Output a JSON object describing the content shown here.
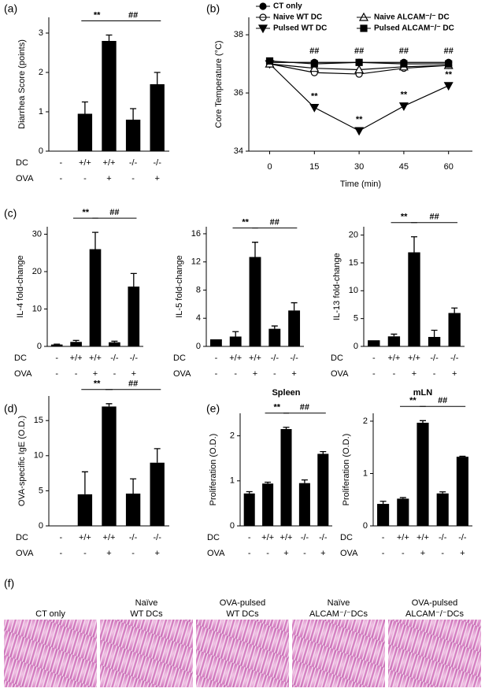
{
  "chart_data": [
    {
      "type": "bar",
      "panel": "(a)",
      "ylabel": "Diarrhea Score (points)",
      "color": "#000000",
      "values": [
        null,
        0.95,
        2.8,
        0.8,
        1.7
      ],
      "errors": [
        null,
        0.3,
        0.15,
        0.28,
        0.3
      ],
      "ylim": [
        0,
        3.4
      ],
      "yticks": [
        0,
        1,
        2,
        3
      ],
      "rows": [
        {
          "label": "DC",
          "values": [
            "-",
            "+/+",
            "+/+",
            "-/-",
            "-/-"
          ]
        },
        {
          "label": "OVA",
          "values": [
            "-",
            "-",
            "+",
            "-",
            "+"
          ]
        }
      ],
      "annotations": [
        "**",
        "##"
      ]
    },
    {
      "type": "line",
      "panel": "(b)",
      "ylabel": "Core Temperature (°C)",
      "xlabel": "Time (min)",
      "legend": "top",
      "x": [
        0,
        15,
        30,
        45,
        60
      ],
      "xlim": [
        -7,
        68
      ],
      "xticks": [
        0,
        15,
        30,
        45,
        60
      ],
      "ylim": [
        34,
        38.6
      ],
      "yticks": [
        34,
        36,
        38
      ],
      "series": [
        {
          "name": "CT only",
          "color": "#000000",
          "marker": "circle",
          "filled": true,
          "values": [
            37.05,
            37.05,
            37.05,
            37.05,
            37.05
          ]
        },
        {
          "name": "Naive WT DC",
          "color": "#000000",
          "marker": "circle",
          "filled": false,
          "values": [
            37.0,
            36.7,
            36.65,
            36.85,
            36.95
          ]
        },
        {
          "name": "Pulsed WT DC",
          "color": "#000000",
          "marker": "triangle-down",
          "filled": true,
          "values": [
            37.0,
            35.5,
            34.7,
            35.55,
            36.25
          ]
        },
        {
          "name": "Naive ALCAM⁻/⁻ DC",
          "color": "#000000",
          "marker": "triangle-up",
          "filled": false,
          "values": [
            37.0,
            36.85,
            36.8,
            36.9,
            36.95
          ]
        },
        {
          "name": "Pulsed ALCAM⁻/⁻ DC",
          "color": "#000000",
          "marker": "square",
          "filled": true,
          "values": [
            37.1,
            37.0,
            37.05,
            37.0,
            37.0
          ]
        }
      ],
      "annotations": [
        {
          "text": "##",
          "x": [
            15,
            30,
            45,
            60
          ]
        },
        {
          "text": "**",
          "x": [
            15,
            30,
            45,
            60
          ]
        }
      ]
    },
    {
      "type": "bar",
      "panel": "(c)",
      "ylabel": "IL-4 fold-change",
      "color": "#000000",
      "values": [
        0.5,
        1.2,
        26,
        1.1,
        16
      ],
      "errors": [
        0.1,
        0.4,
        4.5,
        0.3,
        3.5
      ],
      "ylim": [
        0,
        32
      ],
      "yticks": [
        0,
        10,
        20,
        30
      ],
      "rows": [
        {
          "label": "DC",
          "values": [
            "-",
            "+/+",
            "+/+",
            "-/-",
            "-/-"
          ]
        },
        {
          "label": "OVA",
          "values": [
            "-",
            "-",
            "+",
            "-",
            "+"
          ]
        }
      ],
      "annotations": [
        "**",
        "##"
      ]
    },
    {
      "type": "bar",
      "ylabel": "IL-5 fold-change",
      "color": "#000000",
      "values": [
        1.0,
        1.4,
        12.7,
        2.5,
        5.1
      ],
      "errors": [
        null,
        0.7,
        2.1,
        0.4,
        1.1
      ],
      "ylim": [
        0,
        17
      ],
      "yticks": [
        0,
        4,
        8,
        12,
        16
      ],
      "rows": [
        {
          "label": "DC",
          "values": [
            "-",
            "+/+",
            "+/+",
            "-/-",
            "-/-"
          ]
        },
        {
          "label": "OVA",
          "values": [
            "-",
            "-",
            "+",
            "-",
            "+"
          ]
        }
      ],
      "annotations": [
        "**",
        "##"
      ]
    },
    {
      "type": "bar",
      "ylabel": "IL-13 fold-change",
      "color": "#000000",
      "values": [
        1.1,
        1.8,
        16.9,
        1.7,
        6.0
      ],
      "errors": [
        null,
        0.4,
        2.8,
        1.2,
        0.9
      ],
      "ylim": [
        0,
        21.5
      ],
      "yticks": [
        0,
        5,
        10,
        15,
        20
      ],
      "rows": [
        {
          "label": "DC",
          "values": [
            "-",
            "+/+",
            "+/+",
            "-/-",
            "-/-"
          ]
        },
        {
          "label": "OVA",
          "values": [
            "-",
            "-",
            "+",
            "-",
            "+"
          ]
        }
      ],
      "annotations": [
        "**",
        "##"
      ]
    },
    {
      "type": "bar",
      "panel": "(d)",
      "ylabel": "OVA-specific IgE (O.D.)",
      "color": "#000000",
      "values": [
        null,
        4.5,
        17.0,
        4.6,
        9.0
      ],
      "errors": [
        null,
        3.2,
        0.4,
        2.1,
        2.0
      ],
      "ylim": [
        0,
        18.5
      ],
      "yticks": [
        0,
        5,
        10,
        15
      ],
      "rows": [
        {
          "label": "DC",
          "values": [
            "-",
            "+/+",
            "+/+",
            "-/-",
            "-/-"
          ]
        },
        {
          "label": "OVA",
          "values": [
            "-",
            "-",
            "+",
            "-",
            "+"
          ]
        }
      ],
      "annotations": [
        "**",
        "##"
      ]
    },
    {
      "type": "bar",
      "panel": "(e)",
      "title": "Spleen",
      "ylabel": "Proliferation (O.D.)",
      "color": "#000000",
      "values": [
        0.72,
        0.94,
        2.15,
        0.95,
        1.6
      ],
      "errors": [
        0.04,
        0.03,
        0.04,
        0.07,
        0.05
      ],
      "ylim": [
        0,
        2.5
      ],
      "yticks": [
        0,
        1,
        2
      ],
      "rows": [
        {
          "label": "DC",
          "values": [
            "-",
            "+/+",
            "+/+",
            "-/-",
            "-/-"
          ]
        },
        {
          "label": "OVA",
          "values": [
            "-",
            "-",
            "+",
            "-",
            "+"
          ]
        }
      ],
      "annotations": [
        "**",
        "##"
      ]
    },
    {
      "type": "bar",
      "title": "mLN",
      "ylabel": "Proliferation (O.D.)",
      "color": "#000000",
      "values": [
        0.42,
        0.52,
        1.97,
        0.62,
        1.32
      ],
      "errors": [
        0.05,
        0.02,
        0.04,
        0.03,
        0.01
      ],
      "ylim": [
        0,
        2.15
      ],
      "yticks": [
        0,
        1,
        2
      ],
      "rows": [
        {
          "label": "DC",
          "values": [
            "-",
            "+/+",
            "+/+",
            "-/-",
            "-/-"
          ]
        },
        {
          "label": "OVA",
          "values": [
            "-",
            "-",
            "+",
            "-",
            "+"
          ]
        }
      ],
      "annotations": [
        "**",
        "##"
      ]
    }
  ],
  "images": {
    "panel": "(f)",
    "labels": [
      [
        "CT only"
      ],
      [
        "Naïve",
        "WT DCs"
      ],
      [
        "OVA-pulsed",
        "WT DCs"
      ],
      [
        "Naïve",
        "ALCAM⁻/⁻DCs"
      ],
      [
        "OVA-pulsed",
        "ALCAM⁻/⁻DCs"
      ]
    ]
  }
}
